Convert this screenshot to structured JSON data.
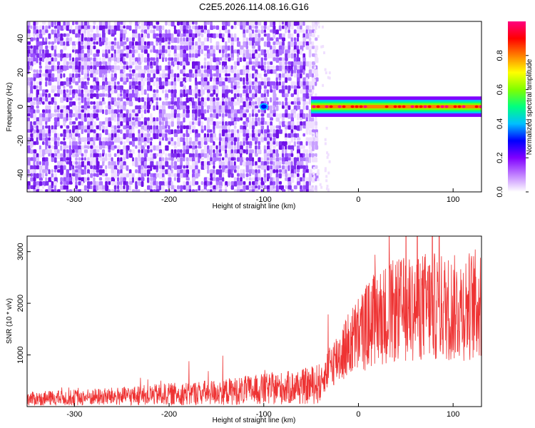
{
  "title": "C2E5.2026.114.08.16.G16",
  "chart_data": [
    {
      "type": "heatmap",
      "xlabel": "Height of straight line (km)",
      "ylabel": "Frequency (Hz)",
      "xlim": [
        -350,
        130
      ],
      "ylim": [
        -50,
        50
      ],
      "xticks": [
        -300,
        -200,
        -100,
        0,
        100
      ],
      "yticks": [
        -40,
        -20,
        0,
        20,
        40
      ],
      "noise_region_x": [
        -350,
        -50
      ],
      "signal_region_x": [
        -50,
        130
      ],
      "signal_band_hz": [
        -3,
        3
      ],
      "colorbar": {
        "label": "Normalized spectral amplitude",
        "range": [
          0,
          1
        ],
        "ticks": [
          0.0,
          0.2,
          0.4,
          0.6,
          0.8
        ],
        "colors": [
          "#ffffff",
          "#c080ff",
          "#8000ff",
          "#0000ff",
          "#00c0ff",
          "#00ff80",
          "#80ff00",
          "#ffff00",
          "#ff8000",
          "#ff0000",
          "#ff0080"
        ]
      }
    },
    {
      "type": "line",
      "xlabel": "Height of straight line (km)",
      "ylabel": "SNR (10 * v/v)",
      "xlim": [
        -350,
        130
      ],
      "ylim": [
        0,
        3300
      ],
      "xticks": [
        -300,
        -200,
        -100,
        0,
        100
      ],
      "yticks": [
        1000,
        2000,
        3000
      ],
      "color": "#ee3333",
      "trend": [
        {
          "x": -350,
          "y": 150
        },
        {
          "x": -250,
          "y": 200
        },
        {
          "x": -150,
          "y": 280
        },
        {
          "x": -60,
          "y": 380
        },
        {
          "x": -40,
          "y": 450
        },
        {
          "x": -30,
          "y": 800
        },
        {
          "x": -15,
          "y": 1100
        },
        {
          "x": 0,
          "y": 1400
        },
        {
          "x": 20,
          "y": 1750
        },
        {
          "x": 40,
          "y": 1850
        },
        {
          "x": 70,
          "y": 1950
        },
        {
          "x": 100,
          "y": 1900
        },
        {
          "x": 130,
          "y": 2000
        }
      ]
    }
  ]
}
